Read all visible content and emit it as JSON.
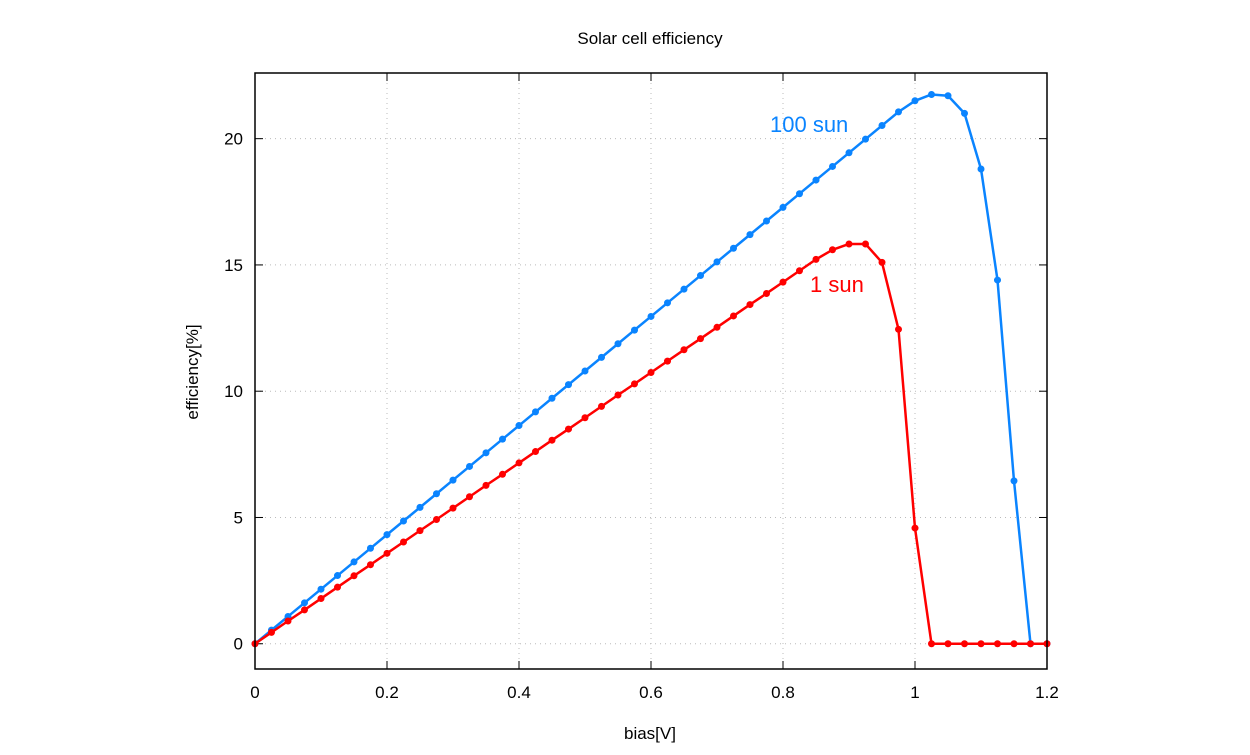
{
  "chart_data": {
    "type": "line",
    "title": "Solar cell efficiency",
    "xlabel": "bias[V]",
    "ylabel": "efficiency[%]",
    "xlim": [
      0,
      1.2
    ],
    "ylim": [
      -1,
      22.6
    ],
    "xticks": [
      "0",
      "0.2",
      "0.4",
      "0.6",
      "0.8",
      "1",
      "1.2"
    ],
    "yticks": [
      "0",
      "5",
      "10",
      "15",
      "20"
    ],
    "grid": true,
    "x": [
      0,
      0.025,
      0.05,
      0.075,
      0.1,
      0.125,
      0.15,
      0.175,
      0.2,
      0.225,
      0.25,
      0.275,
      0.3,
      0.325,
      0.35,
      0.375,
      0.4,
      0.425,
      0.45,
      0.475,
      0.5,
      0.525,
      0.55,
      0.575,
      0.6,
      0.625,
      0.65,
      0.675,
      0.7,
      0.725,
      0.75,
      0.775,
      0.8,
      0.825,
      0.85,
      0.875,
      0.9,
      0.925,
      0.95,
      0.975,
      1.0,
      1.025,
      1.05,
      1.075,
      1.1,
      1.125,
      1.15,
      1.175,
      1.2
    ],
    "series": [
      {
        "name": "100 sun",
        "color": "#0a84ff",
        "values": [
          0,
          0.54,
          1.08,
          1.62,
          2.16,
          2.7,
          3.24,
          3.78,
          4.32,
          4.86,
          5.4,
          5.94,
          6.48,
          7.02,
          7.56,
          8.1,
          8.64,
          9.18,
          9.72,
          10.26,
          10.8,
          11.34,
          11.88,
          12.42,
          12.96,
          13.5,
          14.04,
          14.58,
          15.12,
          15.66,
          16.2,
          16.74,
          17.28,
          17.82,
          18.36,
          18.9,
          19.44,
          19.98,
          20.52,
          21.06,
          21.5,
          21.75,
          21.7,
          21.0,
          18.8,
          14.4,
          6.45,
          0,
          0
        ]
      },
      {
        "name": "1 sun",
        "color": "#ff0000",
        "values": [
          0,
          0.45,
          0.9,
          1.34,
          1.79,
          2.24,
          2.69,
          3.13,
          3.58,
          4.03,
          4.48,
          4.92,
          5.37,
          5.82,
          6.27,
          6.71,
          7.16,
          7.61,
          8.06,
          8.5,
          8.95,
          9.4,
          9.85,
          10.29,
          10.74,
          11.19,
          11.64,
          12.08,
          12.53,
          12.98,
          13.43,
          13.87,
          14.32,
          14.77,
          15.22,
          15.6,
          15.83,
          15.83,
          15.1,
          12.45,
          4.58,
          0,
          0,
          0,
          0,
          0,
          0,
          0,
          0
        ]
      }
    ],
    "annotations": [
      {
        "text": "100 sun",
        "series": "100 sun"
      },
      {
        "text": "1 sun",
        "series": "1 sun"
      }
    ]
  }
}
